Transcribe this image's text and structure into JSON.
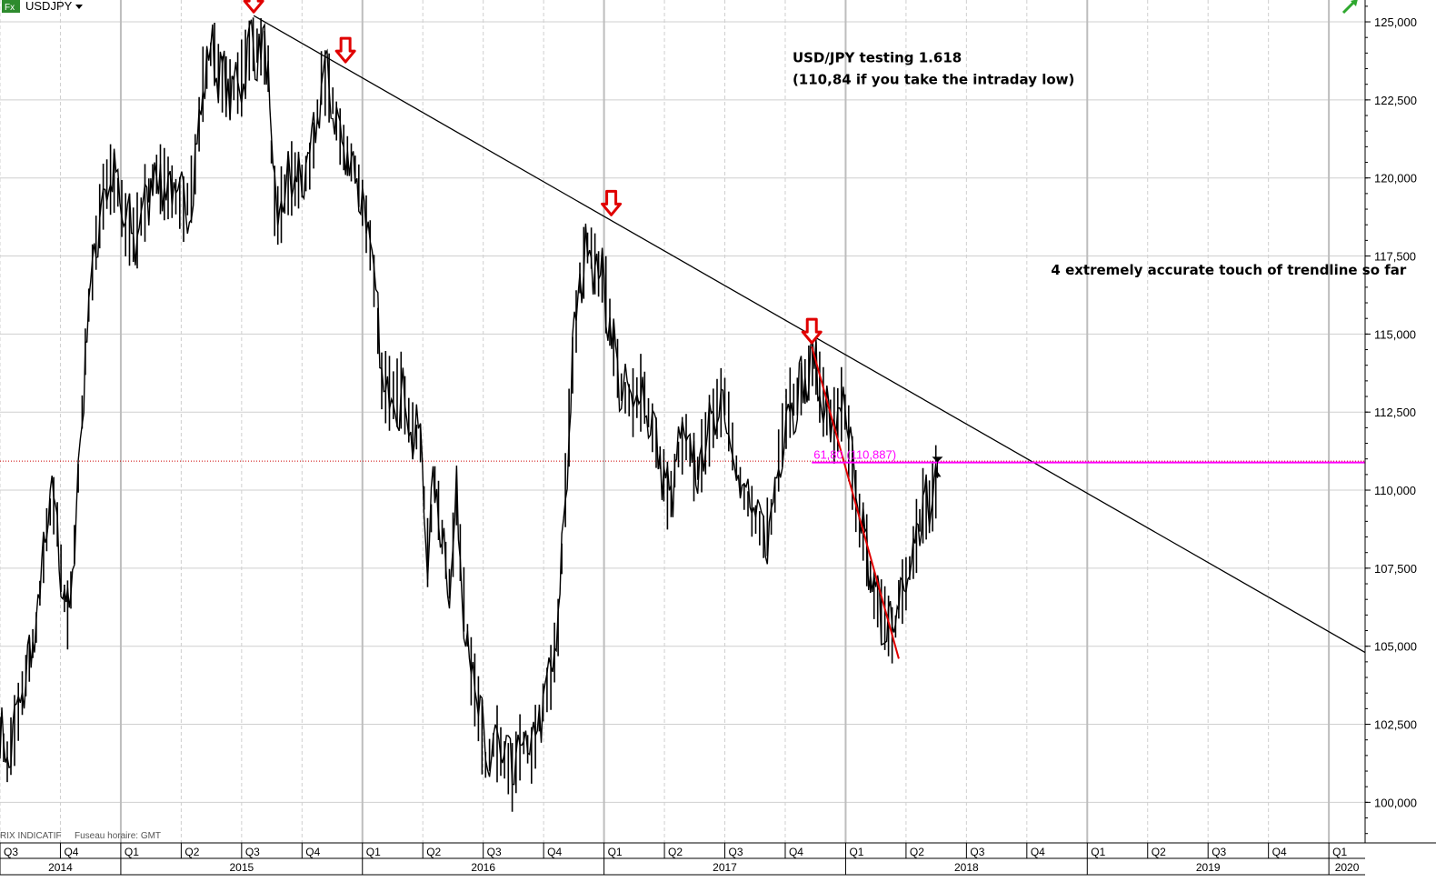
{
  "header": {
    "symbol": "USDJPY",
    "symbol_badge": "Fx",
    "dropdown_icon": "caret-down-icon",
    "trend_icon": "arrow-up-right-icon"
  },
  "footer": {
    "source_note": "RIX INDICATIF",
    "timezone_note": "Fuseau horaire: GMT"
  },
  "colors": {
    "price": "#000000",
    "trendline": "#000000",
    "fib_line": "#ff00ff",
    "red_leg": "#e00000",
    "marker": "#e00000",
    "grid": "#cfcfcf",
    "ref_line": "#cc0000"
  },
  "chart_data": {
    "type": "line",
    "title": "USDJPY",
    "y_axis": {
      "min": 98.7,
      "max": 125.7,
      "position": "right",
      "ticks": [
        100,
        102.5,
        105,
        107.5,
        110,
        112.5,
        115,
        117.5,
        120,
        122.5,
        125
      ],
      "tick_labels": [
        "100,000",
        "102,500",
        "105,000",
        "107,500",
        "110,000",
        "112,500",
        "115,000",
        "117,500",
        "120,000",
        "122,500",
        "125,000"
      ]
    },
    "x_axis": {
      "min": 2014.5,
      "max": 2020.15,
      "quarters": [
        {
          "t": 2014.5,
          "label": "Q3"
        },
        {
          "t": 2014.75,
          "label": "Q4"
        },
        {
          "t": 2015.0,
          "label": "Q1"
        },
        {
          "t": 2015.25,
          "label": "Q2"
        },
        {
          "t": 2015.5,
          "label": "Q3"
        },
        {
          "t": 2015.75,
          "label": "Q4"
        },
        {
          "t": 2016.0,
          "label": "Q1"
        },
        {
          "t": 2016.25,
          "label": "Q2"
        },
        {
          "t": 2016.5,
          "label": "Q3"
        },
        {
          "t": 2016.75,
          "label": "Q4"
        },
        {
          "t": 2017.0,
          "label": "Q1"
        },
        {
          "t": 2017.25,
          "label": "Q2"
        },
        {
          "t": 2017.5,
          "label": "Q3"
        },
        {
          "t": 2017.75,
          "label": "Q4"
        },
        {
          "t": 2018.0,
          "label": "Q1"
        },
        {
          "t": 2018.25,
          "label": "Q2"
        },
        {
          "t": 2018.5,
          "label": "Q3"
        },
        {
          "t": 2018.75,
          "label": "Q4"
        },
        {
          "t": 2019.0,
          "label": "Q1"
        },
        {
          "t": 2019.25,
          "label": "Q2"
        },
        {
          "t": 2019.5,
          "label": "Q3"
        },
        {
          "t": 2019.75,
          "label": "Q4"
        },
        {
          "t": 2020.0,
          "label": "Q1"
        }
      ],
      "years": [
        {
          "t": 2014.5,
          "end": 2015.0,
          "label": "2014"
        },
        {
          "t": 2015.0,
          "end": 2016.0,
          "label": "2015"
        },
        {
          "t": 2016.0,
          "end": 2017.0,
          "label": "2016"
        },
        {
          "t": 2017.0,
          "end": 2018.0,
          "label": "2017"
        },
        {
          "t": 2018.0,
          "end": 2019.0,
          "label": "2018"
        },
        {
          "t": 2019.0,
          "end": 2020.0,
          "label": "2019"
        },
        {
          "t": 2020.0,
          "end": 2020.15,
          "label": "2020"
        }
      ]
    },
    "series": [
      {
        "values": [
          [
            2014.5,
            102.2
          ],
          [
            2014.53,
            101.3
          ],
          [
            2014.56,
            102.3
          ],
          [
            2014.6,
            103.8
          ],
          [
            2014.65,
            105.6
          ],
          [
            2014.68,
            107.8
          ],
          [
            2014.7,
            109.2
          ],
          [
            2014.73,
            109.6
          ],
          [
            2014.76,
            106.8
          ],
          [
            2014.78,
            106.0
          ],
          [
            2014.8,
            107.2
          ],
          [
            2014.84,
            112.5
          ],
          [
            2014.86,
            115.4
          ],
          [
            2014.89,
            117.5
          ],
          [
            2014.92,
            119.2
          ],
          [
            2014.95,
            120.0
          ],
          [
            2014.98,
            119.8
          ],
          [
            2015.02,
            118.5
          ],
          [
            2015.06,
            118.1
          ],
          [
            2015.1,
            119.2
          ],
          [
            2015.14,
            120.2
          ],
          [
            2015.18,
            119.8
          ],
          [
            2015.22,
            119.5
          ],
          [
            2015.26,
            119.0
          ],
          [
            2015.3,
            119.8
          ],
          [
            2015.34,
            123.0
          ],
          [
            2015.38,
            124.2
          ],
          [
            2015.42,
            123.0
          ],
          [
            2015.46,
            122.8
          ],
          [
            2015.5,
            123.2
          ],
          [
            2015.54,
            124.3
          ],
          [
            2015.58,
            124.2
          ],
          [
            2015.61,
            123.5
          ],
          [
            2015.63,
            119.5
          ],
          [
            2015.65,
            118.8
          ],
          [
            2015.7,
            120.0
          ],
          [
            2015.75,
            119.9
          ],
          [
            2015.79,
            120.5
          ],
          [
            2015.83,
            123.2
          ],
          [
            2015.87,
            122.8
          ],
          [
            2015.9,
            121.5
          ],
          [
            2015.93,
            120.8
          ],
          [
            2015.97,
            120.3
          ],
          [
            2016.0,
            119.2
          ],
          [
            2016.04,
            117.5
          ],
          [
            2016.08,
            113.5
          ],
          [
            2016.12,
            113.0
          ],
          [
            2016.16,
            113.2
          ],
          [
            2016.2,
            112.0
          ],
          [
            2016.24,
            111.5
          ],
          [
            2016.27,
            108.0
          ],
          [
            2016.3,
            110.2
          ],
          [
            2016.33,
            108.5
          ],
          [
            2016.36,
            107.0
          ],
          [
            2016.39,
            109.5
          ],
          [
            2016.42,
            106.5
          ],
          [
            2016.45,
            104.2
          ],
          [
            2016.48,
            103.0
          ],
          [
            2016.51,
            101.2
          ],
          [
            2016.55,
            102.0
          ],
          [
            2016.58,
            101.5
          ],
          [
            2016.62,
            100.8
          ],
          [
            2016.66,
            102.0
          ],
          [
            2016.7,
            101.5
          ],
          [
            2016.74,
            103.0
          ],
          [
            2016.78,
            104.0
          ],
          [
            2016.81,
            105.6
          ],
          [
            2016.84,
            110.0
          ],
          [
            2016.87,
            114.0
          ],
          [
            2016.9,
            116.8
          ],
          [
            2016.94,
            118.0
          ],
          [
            2016.97,
            117.0
          ],
          [
            2017.0,
            116.7
          ],
          [
            2017.04,
            114.5
          ],
          [
            2017.08,
            113.0
          ],
          [
            2017.12,
            112.8
          ],
          [
            2017.16,
            113.2
          ],
          [
            2017.2,
            112.0
          ],
          [
            2017.24,
            110.8
          ],
          [
            2017.27,
            109.5
          ],
          [
            2017.3,
            111.0
          ],
          [
            2017.34,
            111.7
          ],
          [
            2017.38,
            110.5
          ],
          [
            2017.42,
            111.5
          ],
          [
            2017.46,
            112.5
          ],
          [
            2017.5,
            113.0
          ],
          [
            2017.54,
            111.0
          ],
          [
            2017.58,
            109.8
          ],
          [
            2017.62,
            109.2
          ],
          [
            2017.66,
            108.5
          ],
          [
            2017.7,
            109.3
          ],
          [
            2017.73,
            111.5
          ],
          [
            2017.77,
            112.8
          ],
          [
            2017.8,
            113.0
          ],
          [
            2017.84,
            113.6
          ],
          [
            2017.87,
            114.2
          ],
          [
            2017.9,
            113.0
          ],
          [
            2017.93,
            112.3
          ],
          [
            2017.96,
            112.0
          ],
          [
            2017.99,
            113.0
          ],
          [
            2018.02,
            111.0
          ],
          [
            2018.05,
            109.2
          ],
          [
            2018.08,
            108.5
          ],
          [
            2018.11,
            106.8
          ],
          [
            2018.14,
            106.2
          ],
          [
            2018.17,
            105.8
          ],
          [
            2018.2,
            105.2
          ],
          [
            2018.22,
            106.5
          ],
          [
            2018.25,
            107.0
          ],
          [
            2018.28,
            108.0
          ],
          [
            2018.3,
            108.8
          ],
          [
            2018.32,
            109.5
          ],
          [
            2018.34,
            109.3
          ],
          [
            2018.36,
            109.8
          ],
          [
            2018.38,
            110.5
          ]
        ]
      }
    ],
    "trendline": {
      "from": [
        2015.55,
        125.2
      ],
      "to": [
        2020.15,
        104.8
      ]
    },
    "red_leg": {
      "from": [
        2017.86,
        114.6
      ],
      "to": [
        2018.22,
        104.6
      ]
    },
    "fib_level": {
      "value": 110.887,
      "from": 2017.86,
      "to": 2020.15,
      "label": "61,80 (110,887)"
    },
    "reference_level": 110.93,
    "markers": [
      {
        "t": 2015.55,
        "y": 125.2
      },
      {
        "t": 2015.93,
        "y": 123.6
      },
      {
        "t": 2017.03,
        "y": 118.7
      },
      {
        "t": 2017.86,
        "y": 114.6
      }
    ],
    "last_value_marker": {
      "t": 2018.38,
      "y": 110.6
    },
    "annotations": [
      {
        "t": 2017.78,
        "y": 123.7,
        "text": "USD/JPY testing 1.618"
      },
      {
        "t": 2017.78,
        "y": 123.0,
        "text": "(110,84 if you take the intraday low)"
      },
      {
        "t": 2018.85,
        "y": 116.9,
        "text": "4 extremely accurate touch of trendline so far"
      }
    ]
  }
}
